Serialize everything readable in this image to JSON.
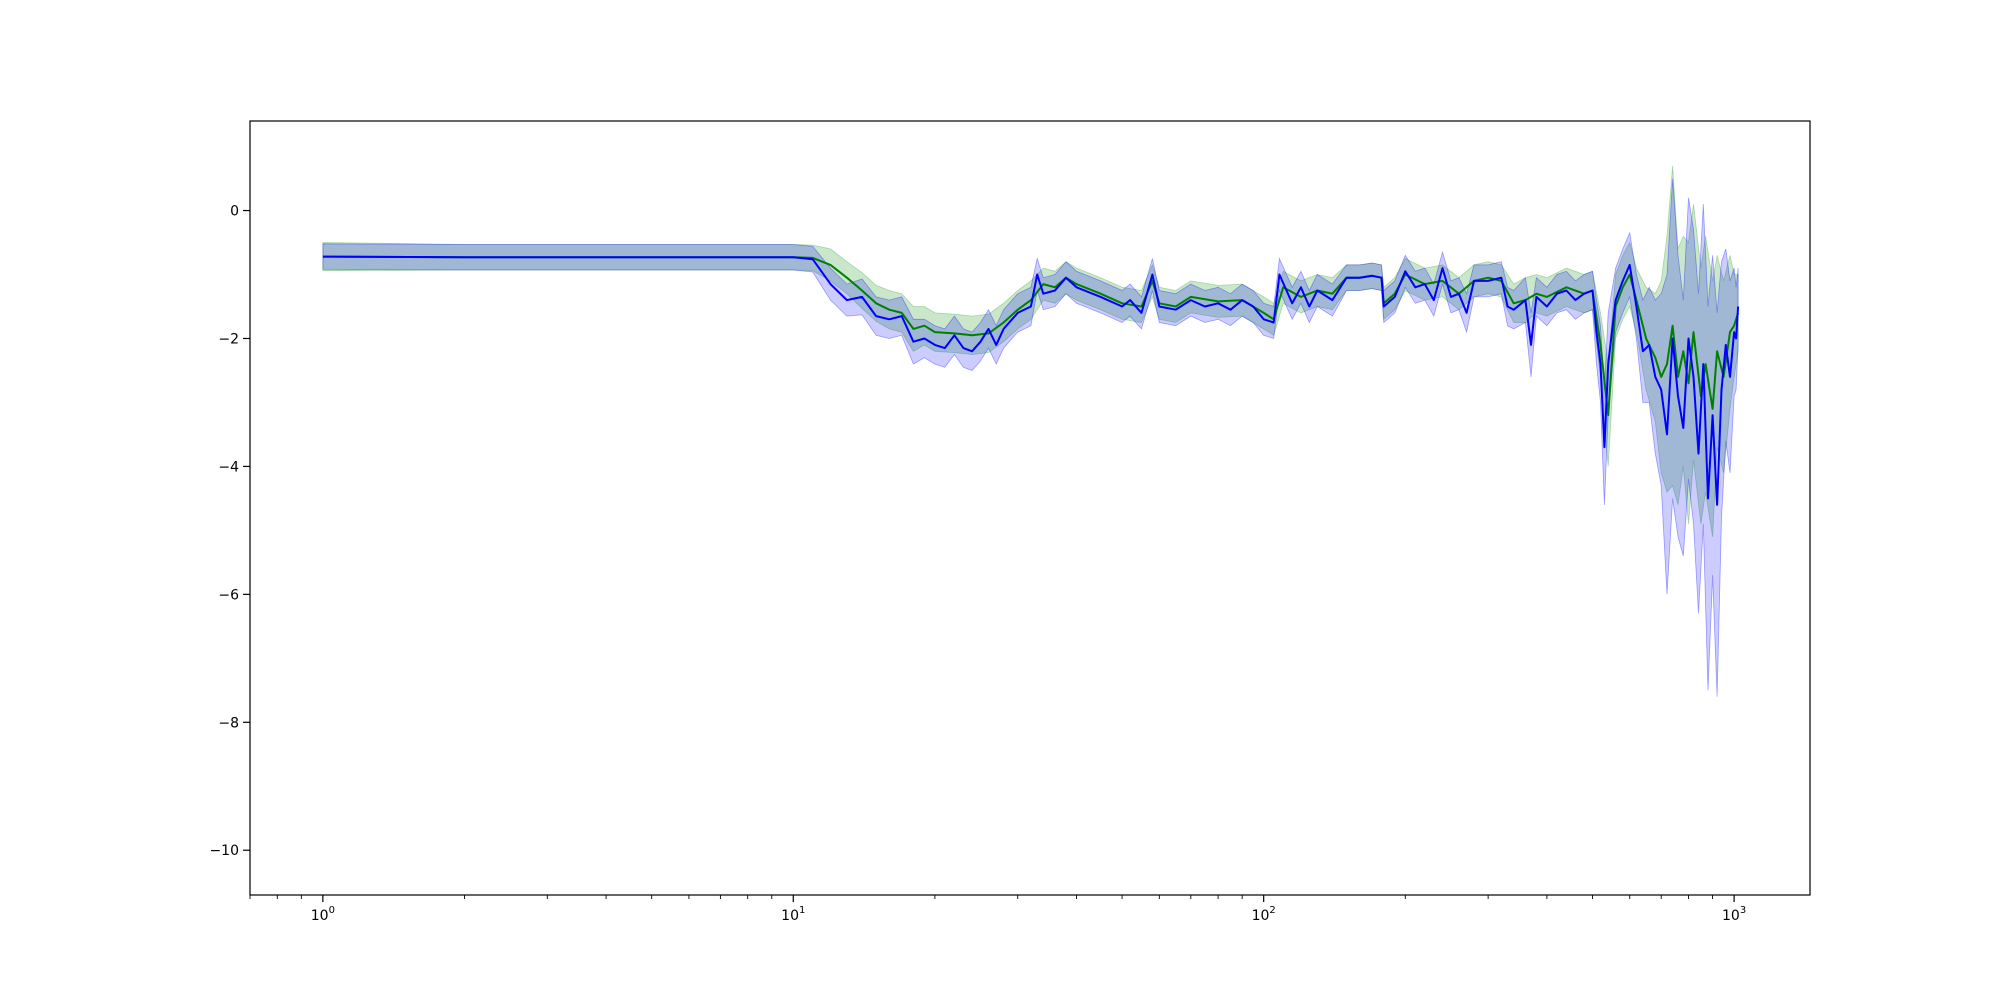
{
  "chart_data": {
    "type": "line",
    "title": "",
    "xlabel": "",
    "ylabel": "",
    "xscale": "log",
    "xlim": [
      0.7,
      1450
    ],
    "ylim": [
      -10.7,
      1.4
    ],
    "grid": false,
    "legend": "none",
    "x_major_ticks": [
      1,
      10,
      100,
      1000
    ],
    "x_tick_labels": [
      {
        "base": "10",
        "exp": "0"
      },
      {
        "base": "10",
        "exp": "1"
      },
      {
        "base": "10",
        "exp": "2"
      },
      {
        "base": "10",
        "exp": "3"
      }
    ],
    "y_ticks": [
      0,
      -2,
      -4,
      -6,
      -8,
      -10
    ],
    "y_tick_labels": [
      "0",
      "−2",
      "−4",
      "−6",
      "−8",
      "−10"
    ],
    "series": [
      {
        "color": "#008000",
        "band_color": "#2ca02c",
        "band_opacity": 0.25,
        "points": [
          [
            1,
            -0.72,
            0.22
          ],
          [
            2,
            -0.73,
            0.2
          ],
          [
            5,
            -0.73,
            0.2
          ],
          [
            10,
            -0.73,
            0.2
          ],
          [
            11,
            -0.74,
            0.2
          ],
          [
            12,
            -0.85,
            0.25
          ],
          [
            13,
            -1.05,
            0.25
          ],
          [
            14,
            -1.25,
            0.28
          ],
          [
            15,
            -1.45,
            0.28
          ],
          [
            16,
            -1.55,
            0.3
          ],
          [
            17,
            -1.6,
            0.3
          ],
          [
            18,
            -1.85,
            0.35
          ],
          [
            19,
            -1.8,
            0.3
          ],
          [
            20,
            -1.9,
            0.3
          ],
          [
            22,
            -1.92,
            0.3
          ],
          [
            24,
            -1.95,
            0.3
          ],
          [
            26,
            -1.92,
            0.3
          ],
          [
            28,
            -1.75,
            0.3
          ],
          [
            30,
            -1.55,
            0.3
          ],
          [
            32,
            -1.4,
            0.3
          ],
          [
            34,
            -1.15,
            0.25
          ],
          [
            36,
            -1.2,
            0.25
          ],
          [
            38,
            -1.05,
            0.25
          ],
          [
            40,
            -1.15,
            0.25
          ],
          [
            45,
            -1.3,
            0.25
          ],
          [
            50,
            -1.45,
            0.25
          ],
          [
            55,
            -1.5,
            0.25
          ],
          [
            58,
            -1.1,
            0.25
          ],
          [
            60,
            -1.45,
            0.25
          ],
          [
            65,
            -1.5,
            0.25
          ],
          [
            70,
            -1.35,
            0.25
          ],
          [
            80,
            -1.42,
            0.25
          ],
          [
            90,
            -1.4,
            0.25
          ],
          [
            100,
            -1.6,
            0.25
          ],
          [
            105,
            -1.7,
            0.25
          ],
          [
            110,
            -1.2,
            0.25
          ],
          [
            120,
            -1.35,
            0.25
          ],
          [
            130,
            -1.25,
            0.25
          ],
          [
            140,
            -1.3,
            0.25
          ],
          [
            150,
            -1.05,
            0.2
          ],
          [
            160,
            -1.05,
            0.2
          ],
          [
            170,
            -1.02,
            0.2
          ],
          [
            178,
            -1.05,
            0.2
          ],
          [
            180,
            -1.45,
            0.25
          ],
          [
            190,
            -1.3,
            0.25
          ],
          [
            200,
            -1.0,
            0.25
          ],
          [
            220,
            -1.15,
            0.25
          ],
          [
            240,
            -1.1,
            0.25
          ],
          [
            260,
            -1.3,
            0.25
          ],
          [
            280,
            -1.1,
            0.25
          ],
          [
            300,
            -1.05,
            0.25
          ],
          [
            320,
            -1.1,
            0.25
          ],
          [
            340,
            -1.45,
            0.3
          ],
          [
            360,
            -1.4,
            0.35
          ],
          [
            380,
            -1.3,
            0.3
          ],
          [
            400,
            -1.35,
            0.3
          ],
          [
            440,
            -1.2,
            0.3
          ],
          [
            480,
            -1.3,
            0.3
          ],
          [
            500,
            -1.25,
            0.3
          ],
          [
            520,
            -2.1,
            0.5
          ],
          [
            540,
            -3.2,
            0.8
          ],
          [
            560,
            -1.5,
            0.5
          ],
          [
            580,
            -1.2,
            0.5
          ],
          [
            600,
            -1.0,
            0.5
          ],
          [
            620,
            -1.4,
            0.5
          ],
          [
            650,
            -2.0,
            0.8
          ],
          [
            680,
            -2.3,
            1.0
          ],
          [
            700,
            -2.6,
            1.5
          ],
          [
            720,
            -2.4,
            2.0
          ],
          [
            740,
            -1.8,
            2.5
          ],
          [
            760,
            -2.6,
            2.0
          ],
          [
            780,
            -2.2,
            1.8
          ],
          [
            800,
            -2.7,
            2.2
          ],
          [
            820,
            -1.9,
            2.0
          ],
          [
            850,
            -2.9,
            2.0
          ],
          [
            870,
            -2.4,
            2.0
          ],
          [
            900,
            -3.1,
            2.0
          ],
          [
            920,
            -2.2,
            1.5
          ],
          [
            950,
            -2.6,
            1.5
          ],
          [
            980,
            -1.9,
            1.2
          ],
          [
            1000,
            -1.8,
            0.8
          ],
          [
            1020,
            -1.6,
            0.6
          ]
        ]
      },
      {
        "color": "#0000ff",
        "band_color": "#0000ff",
        "band_opacity": 0.2,
        "points": [
          [
            1,
            -0.72,
            0.2
          ],
          [
            2,
            -0.73,
            0.2
          ],
          [
            5,
            -0.73,
            0.2
          ],
          [
            10,
            -0.73,
            0.2
          ],
          [
            11,
            -0.76,
            0.2
          ],
          [
            12,
            -1.15,
            0.25
          ],
          [
            13,
            -1.4,
            0.25
          ],
          [
            14,
            -1.35,
            0.28
          ],
          [
            15,
            -1.65,
            0.3
          ],
          [
            16,
            -1.7,
            0.3
          ],
          [
            17,
            -1.65,
            0.3
          ],
          [
            18,
            -2.05,
            0.35
          ],
          [
            19,
            -2.0,
            0.3
          ],
          [
            20,
            -2.1,
            0.3
          ],
          [
            21,
            -2.15,
            0.3
          ],
          [
            22,
            -1.95,
            0.3
          ],
          [
            23,
            -2.15,
            0.3
          ],
          [
            24,
            -2.2,
            0.3
          ],
          [
            25,
            -2.05,
            0.3
          ],
          [
            26,
            -1.85,
            0.3
          ],
          [
            27,
            -2.1,
            0.3
          ],
          [
            28,
            -1.85,
            0.3
          ],
          [
            30,
            -1.6,
            0.3
          ],
          [
            32,
            -1.5,
            0.3
          ],
          [
            33,
            -1.0,
            0.25
          ],
          [
            34,
            -1.3,
            0.25
          ],
          [
            36,
            -1.25,
            0.25
          ],
          [
            38,
            -1.05,
            0.25
          ],
          [
            40,
            -1.2,
            0.25
          ],
          [
            45,
            -1.35,
            0.25
          ],
          [
            50,
            -1.5,
            0.25
          ],
          [
            52,
            -1.4,
            0.25
          ],
          [
            55,
            -1.6,
            0.25
          ],
          [
            58,
            -1.0,
            0.25
          ],
          [
            60,
            -1.5,
            0.25
          ],
          [
            65,
            -1.55,
            0.25
          ],
          [
            70,
            -1.4,
            0.25
          ],
          [
            75,
            -1.5,
            0.25
          ],
          [
            80,
            -1.45,
            0.25
          ],
          [
            85,
            -1.55,
            0.25
          ],
          [
            90,
            -1.4,
            0.25
          ],
          [
            95,
            -1.5,
            0.25
          ],
          [
            100,
            -1.7,
            0.25
          ],
          [
            105,
            -1.75,
            0.25
          ],
          [
            108,
            -1.0,
            0.25
          ],
          [
            115,
            -1.45,
            0.25
          ],
          [
            120,
            -1.2,
            0.25
          ],
          [
            125,
            -1.5,
            0.25
          ],
          [
            130,
            -1.25,
            0.25
          ],
          [
            140,
            -1.4,
            0.25
          ],
          [
            150,
            -1.05,
            0.2
          ],
          [
            160,
            -1.05,
            0.2
          ],
          [
            170,
            -1.02,
            0.2
          ],
          [
            178,
            -1.05,
            0.2
          ],
          [
            180,
            -1.5,
            0.25
          ],
          [
            190,
            -1.35,
            0.25
          ],
          [
            200,
            -0.95,
            0.25
          ],
          [
            210,
            -1.2,
            0.25
          ],
          [
            220,
            -1.15,
            0.25
          ],
          [
            230,
            -1.4,
            0.25
          ],
          [
            240,
            -0.9,
            0.25
          ],
          [
            250,
            -1.35,
            0.25
          ],
          [
            260,
            -1.3,
            0.25
          ],
          [
            270,
            -1.6,
            0.3
          ],
          [
            280,
            -1.1,
            0.25
          ],
          [
            300,
            -1.1,
            0.25
          ],
          [
            320,
            -1.05,
            0.25
          ],
          [
            330,
            -1.5,
            0.3
          ],
          [
            340,
            -1.55,
            0.3
          ],
          [
            360,
            -1.4,
            0.35
          ],
          [
            370,
            -2.1,
            0.5
          ],
          [
            380,
            -1.35,
            0.3
          ],
          [
            400,
            -1.5,
            0.3
          ],
          [
            420,
            -1.3,
            0.3
          ],
          [
            440,
            -1.25,
            0.3
          ],
          [
            460,
            -1.4,
            0.3
          ],
          [
            480,
            -1.3,
            0.3
          ],
          [
            500,
            -1.25,
            0.3
          ],
          [
            510,
            -1.9,
            0.5
          ],
          [
            520,
            -2.4,
            0.6
          ],
          [
            530,
            -3.7,
            0.9
          ],
          [
            540,
            -2.4,
            0.8
          ],
          [
            560,
            -1.4,
            0.5
          ],
          [
            580,
            -1.1,
            0.5
          ],
          [
            600,
            -0.85,
            0.5
          ],
          [
            620,
            -1.5,
            0.5
          ],
          [
            640,
            -2.2,
            0.8
          ],
          [
            660,
            -2.1,
            0.9
          ],
          [
            680,
            -2.6,
            1.2
          ],
          [
            700,
            -2.8,
            1.5
          ],
          [
            720,
            -3.5,
            2.5
          ],
          [
            740,
            -2.0,
            2.5
          ],
          [
            760,
            -2.9,
            2.2
          ],
          [
            780,
            -3.4,
            2.0
          ],
          [
            800,
            -2.0,
            2.2
          ],
          [
            820,
            -2.6,
            2.3
          ],
          [
            840,
            -3.8,
            2.5
          ],
          [
            860,
            -2.4,
            2.5
          ],
          [
            880,
            -4.5,
            3.0
          ],
          [
            900,
            -3.2,
            2.5
          ],
          [
            920,
            -4.6,
            3.0
          ],
          [
            940,
            -2.8,
            2.0
          ],
          [
            960,
            -2.1,
            1.5
          ],
          [
            980,
            -2.6,
            1.5
          ],
          [
            1000,
            -1.9,
            1.0
          ],
          [
            1010,
            -2.0,
            0.8
          ],
          [
            1020,
            -1.5,
            0.6
          ]
        ]
      }
    ]
  }
}
